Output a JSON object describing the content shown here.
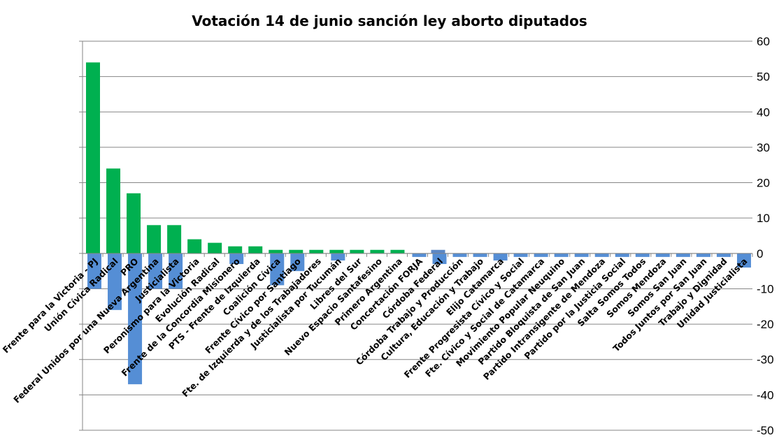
{
  "chart_data": {
    "type": "bar",
    "title": "Votación 14 de junio sanción ley aborto diputados",
    "xlabel": "",
    "ylabel": "",
    "ylim": [
      -50,
      60
    ],
    "yticks": [
      -50,
      -40,
      -30,
      -20,
      -10,
      0,
      10,
      20,
      30,
      40,
      50,
      60
    ],
    "grid": true,
    "legend": "none",
    "categories": [
      "Frente para la Victoria - PJ",
      "Unión Cívica Radical",
      "PRO",
      "Federal Unidos por una Nueva Argentina",
      "Justicialista",
      "Peronismo para la Victoria",
      "Evolución Radical",
      "Frente de la Concordia Misionero",
      "PTS - Frente de Izquierda",
      "Coalición Cívica",
      "Frente Cívico por Santiago",
      "Fte. de Izquierda y de los Trabajadores",
      "Justicialista por Tucumán",
      "Libres del Sur",
      "Nuevo Espacio Santafesino",
      "Primero Argentina",
      "Concertación FORJA",
      "Córdoba Federal",
      "Córdoba Trabajo y Producción",
      "Cultura, Educación y Trabajo",
      "Elijo Catamarca",
      "Frente Progresista Cívico y Social",
      "Fte. Cívico y Social de Catamarca",
      "Movimiento Popular Neuquino",
      "Partido Bloquista de San Juan",
      "Partido Intransigente de Mendoza",
      "Partido por la Justicia Social",
      "Salta Somos Todos",
      "Somos Mendoza",
      "Somos San Juan",
      "Todos Juntos por San Juan",
      "Trabajo y Dignidad",
      "Unidad Justicialista"
    ],
    "series": [
      {
        "color": "#00b050",
        "values": [
          54,
          24,
          17,
          8,
          8,
          4,
          3,
          2,
          2,
          1,
          1,
          1,
          1,
          1,
          1,
          1,
          0,
          1,
          0,
          0,
          0,
          0,
          0,
          0,
          0,
          0,
          0,
          0,
          0,
          0,
          0,
          0,
          0
        ]
      },
      {
        "color": "#558ed5",
        "values": [
          -10,
          -16,
          -37,
          -10,
          -10,
          0,
          0,
          -3,
          0,
          -9,
          -5,
          0,
          -2,
          0,
          0,
          0,
          -1,
          -3,
          -1,
          -1,
          -2,
          -1,
          -1,
          -1,
          -1,
          -1,
          -1,
          -1,
          -1,
          -1,
          -1,
          -1,
          -4
        ]
      }
    ],
    "colors": {
      "grid": "#868686",
      "axis": "#868686",
      "cordoba_federal_positive": "#5b87c5"
    }
  }
}
